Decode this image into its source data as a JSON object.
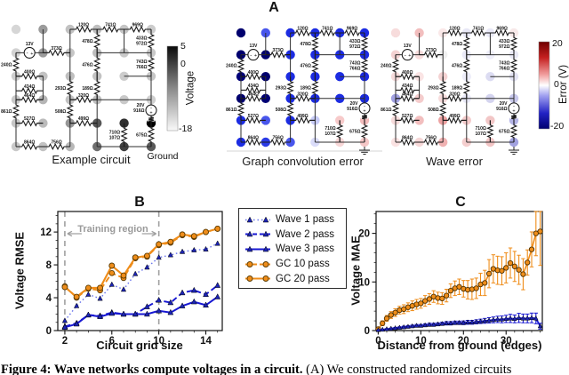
{
  "figure": {
    "panel_a_label": "A",
    "panel_b_label": "B",
    "panel_c_label": "C",
    "caption_bold": "Figure 4: Wave networks compute voltages in a circuit.",
    "caption_rest": " (A) We constructed randomized circuits"
  },
  "colors": {
    "orange": "#ef8d1a",
    "blue": "#1717d2",
    "light_blue": "#6b76ec",
    "marker_navy": "#1c24b4",
    "gray_dashed": "#a0a0a0",
    "wire": "#2e2e2e"
  },
  "circuit": {
    "ground_label": "Ground",
    "source1": {
      "label": "13V"
    },
    "source2": {
      "label": "20V",
      "resistor": "916Ω"
    },
    "resistors": [
      {
        "o": "h",
        "row": 1,
        "a": 3,
        "b": 4,
        "label": "120Ω"
      },
      {
        "o": "h",
        "row": 1,
        "a": 4,
        "b": 5,
        "label": "741Ω"
      },
      {
        "o": "h",
        "row": 1,
        "a": 5,
        "b": 6,
        "label": "969Ω"
      },
      {
        "o": "h",
        "row": 2,
        "a": 2,
        "b": 3,
        "label": "373Ω"
      },
      {
        "o": "v",
        "col": 4,
        "a": 1,
        "b": 2,
        "label": "478Ω"
      },
      {
        "o": "v",
        "col": 6,
        "a": 1,
        "b": 2,
        "label": "433Ω",
        "label2": "972Ω"
      },
      {
        "o": "v",
        "col": 1,
        "a": 2,
        "b": 3,
        "label": "240Ω"
      },
      {
        "o": "h",
        "row": 3,
        "a": 1,
        "b": 2,
        "label": "400Ω"
      },
      {
        "o": "v",
        "col": 4,
        "a": 2,
        "b": 3,
        "label": "476Ω"
      },
      {
        "o": "v",
        "col": 6,
        "a": 2,
        "b": 3,
        "label": "743Ω",
        "label2": "766Ω"
      },
      {
        "o": "h",
        "row": 3.62,
        "a": 1,
        "b": 2,
        "label": "434Ω"
      },
      {
        "o": "h",
        "row": 4,
        "a": 1,
        "b": 2,
        "label": "464Ω"
      },
      {
        "o": "v",
        "col": 3,
        "a": 3,
        "b": 4,
        "label": "293Ω"
      },
      {
        "o": "v",
        "col": 4,
        "a": 3,
        "b": 4,
        "label": "189Ω"
      },
      {
        "o": "h",
        "row": 4,
        "a": 3,
        "b": 4,
        "label": "320Ω"
      },
      {
        "o": "v",
        "col": 1,
        "a": 4,
        "b": 5,
        "label": "861Ω"
      },
      {
        "o": "v",
        "col": 3,
        "a": 4,
        "b": 5,
        "label": "508Ω"
      },
      {
        "o": "h",
        "row": 5,
        "a": 1,
        "b": 2,
        "label": "527Ω"
      },
      {
        "o": "h",
        "row": 5,
        "a": 3,
        "b": 4,
        "label": "499Ω"
      },
      {
        "o": "v",
        "col": 5,
        "a": 5,
        "b": 6,
        "label": "710Ω",
        "label2": "107Ω"
      },
      {
        "o": "v",
        "col": 6,
        "a": 5,
        "b": 6,
        "label": "675Ω"
      },
      {
        "o": "h",
        "row": 6,
        "a": 1,
        "b": 2,
        "label": "864Ω"
      },
      {
        "o": "h",
        "row": 6,
        "a": 2,
        "b": 3,
        "label": "756Ω"
      }
    ],
    "panels": [
      {
        "id": "example",
        "title": "Example circuit",
        "nodes": [
          [
            "#d6d6d6",
            "#9b9b9b",
            "#c2c2c2",
            "#bfbfbf",
            "#c5c5c5",
            "#cccccc"
          ],
          [
            "#d2d2d2",
            "#9b9b9b",
            "#c6c6c6",
            "#bdbdbd",
            "#c9c9c9",
            "#c9c9c9"
          ],
          [
            "#cfcfcf",
            "#c2c2c2",
            "#bfbfbf",
            "#c2c2c2",
            "#cccccc",
            "#c6c6c6"
          ],
          [
            "#c9c9c9",
            "#b5b5b5",
            "#c2c2c2",
            "#bfbfbf",
            "#c9c9c9",
            "#cfcfcf"
          ],
          [
            "#c6c6c6",
            "#bbbbbb",
            "#979797",
            "#575757",
            "#303030",
            "#000000"
          ],
          [
            "#c9c9c9",
            "#c2c2c2",
            "#b8b8b8",
            "#6f6f6f",
            "#414141",
            "#5a5a5a"
          ]
        ]
      },
      {
        "id": "gc",
        "title": "Graph convolution error",
        "nodes": [
          [
            "#00006e",
            "#4856ec",
            "#1c2ce2",
            "#1c2ce2",
            "#1c2ce2",
            "#1c2ce2"
          ],
          [
            "#00006e",
            "#00006e",
            "#1c2ce2",
            "#1c2ce2",
            "#1c2ce2",
            "#1c2ce2"
          ],
          [
            "#000078",
            "#00006e",
            "#1c2ce2",
            "#1c2ce2",
            "#1c2ce2",
            "#1c2ce2"
          ],
          [
            "#00006e",
            "#000074",
            "#1c2ce2",
            "#1c2ce2",
            "#1c2ce2",
            "#1c2ce2"
          ],
          [
            "#1c2ce2",
            "#4856ec",
            "#1c2ce2",
            "#c8ccf8",
            "#f7caca",
            "#f3bcbc"
          ],
          [
            "#1c2ce2",
            "#2a3ae6",
            "#4856ec",
            "#dadcfa",
            "#f7d6d6",
            "#f4c6c6"
          ]
        ]
      },
      {
        "id": "wave",
        "title": "Wave error",
        "nodes": [
          [
            "#f7dcdc",
            "#f2bebe",
            "#fae8e8",
            "#e8e8f6",
            "#eaeaf8",
            "#f7e8e8"
          ],
          [
            "#f4d2d2",
            "#f7dcdc",
            "#f0f0f0",
            "#eaeaf8",
            "#efeffa",
            "#e8e8f5"
          ],
          [
            "#f7dcdc",
            "#fae4e4",
            "#f4d2d2",
            "#ededf9",
            "#dcdcf2",
            "#e4e4f4"
          ],
          [
            "#a2a2e2",
            "#f4cccc",
            "#f7dcdc",
            "#eaeaf8",
            "#d4d4ef",
            "#c8c8ec"
          ],
          [
            "#f7dcdc",
            "#f2bebe",
            "#eda2a2",
            "#f4cccc",
            "#f2c6c6",
            "#b6b6e8"
          ],
          [
            "#fae2e2",
            "#f7d8d8",
            "#f0b2b2",
            "#f4cece",
            "#f2c4c4",
            "#a2a2e0"
          ]
        ]
      }
    ],
    "voltage_bar": {
      "label": "Voltage",
      "tick_top": "5",
      "tick_mid": "0",
      "tick_bottom": "-18"
    },
    "error_bar": {
      "label": "Error (V)",
      "tick_top": "20",
      "tick_mid": "0",
      "tick_bottom": "-20"
    }
  },
  "chart_data": [
    {
      "id": "B",
      "type": "line",
      "xlabel": "Circuit grid size",
      "ylabel": "Voltage RMSE",
      "xlim": [
        1.4,
        15.4
      ],
      "ylim": [
        0,
        14.5
      ],
      "xticks": [
        2,
        6,
        10,
        14
      ],
      "yticks": [
        0,
        4,
        8,
        12
      ],
      "x": [
        2,
        3,
        4,
        5,
        6,
        7,
        8,
        9,
        10,
        11,
        12,
        13,
        14,
        15
      ],
      "series": [
        {
          "name": "Wave 1 pass",
          "style": "dotted",
          "marker": "triangle",
          "values": [
            1.2,
            3.0,
            4.4,
            3.9,
            5.6,
            5.0,
            6.9,
            7.7,
            8.9,
            9.2,
            9.6,
            9.8,
            9.9,
            10.6
          ]
        },
        {
          "name": "Wave 2 pass",
          "style": "dashed",
          "marker": "triangle",
          "values": [
            0.5,
            0.9,
            1.9,
            1.8,
            2.2,
            2.0,
            2.0,
            2.9,
            3.7,
            3.4,
            4.6,
            4.9,
            4.4,
            5.5
          ]
        },
        {
          "name": "Wave 3 pass",
          "style": "solid",
          "marker": "triangle",
          "values": [
            0.4,
            0.8,
            1.9,
            1.7,
            2.1,
            2.0,
            2.0,
            2.0,
            2.4,
            2.2,
            3.0,
            3.5,
            3.1,
            4.1
          ]
        },
        {
          "name": "GC 10 pass",
          "style": "dashed",
          "marker": "circle",
          "values": [
            5.4,
            4.0,
            5.1,
            4.9,
            7.0,
            6.4,
            8.8,
            9.0,
            10.4,
            10.7,
            11.6,
            11.4,
            12.0,
            12.4
          ]
        },
        {
          "name": "GC 20 pass",
          "style": "solid",
          "marker": "circle",
          "values": [
            5.3,
            4.1,
            5.2,
            5.2,
            7.9,
            6.7,
            8.9,
            9.1,
            10.5,
            10.8,
            11.7,
            11.5,
            12.0,
            12.4
          ]
        }
      ],
      "annotations": {
        "training_label": "Training region",
        "training_range": [
          2,
          10
        ]
      }
    },
    {
      "id": "C",
      "type": "errorbar-line",
      "xlabel": "Distance from ground (edges)",
      "ylabel": "Voltage MAE",
      "xlim": [
        -0.5,
        38.5
      ],
      "ylim": [
        0,
        24.5
      ],
      "xticks": [
        0,
        10,
        20,
        30
      ],
      "yticks": [
        0,
        10,
        20
      ],
      "x": [
        0,
        1,
        2,
        3,
        4,
        5,
        6,
        7,
        8,
        9,
        10,
        11,
        12,
        13,
        14,
        15,
        16,
        17,
        18,
        19,
        20,
        21,
        22,
        23,
        24,
        25,
        26,
        27,
        28,
        29,
        30,
        31,
        32,
        33,
        34,
        35,
        36,
        37,
        38
      ],
      "series": [
        {
          "name": "GC",
          "marker": "circle",
          "style": "solid",
          "values": [
            0.3,
            1.5,
            2.5,
            3.2,
            3.7,
            4.2,
            4.4,
            4.8,
            5.1,
            5.4,
            5.6,
            6.1,
            6.5,
            7.0,
            6.7,
            6.6,
            7.2,
            8.2,
            8.7,
            9.0,
            8.6,
            8.4,
            8.5,
            8.7,
            9.5,
            9.8,
            11.7,
            12.7,
            12.4,
            12.3,
            12.9,
            13.9,
            13.2,
            12.5,
            11.6,
            14.0,
            16.7,
            20.0,
            20.4
          ],
          "errors": [
            0.3,
            0.5,
            0.6,
            0.7,
            0.8,
            0.8,
            0.9,
            0.9,
            1.0,
            1.0,
            1.0,
            1.1,
            1.1,
            1.2,
            1.2,
            1.2,
            1.3,
            1.4,
            1.5,
            1.6,
            1.7,
            1.9,
            2.1,
            2.1,
            2.3,
            2.6,
            2.9,
            2.9,
            2.9,
            2.9,
            3.1,
            3.1,
            3.1,
            3.0,
            3.2,
            2.6,
            3.6,
            4.6,
            7.0
          ]
        },
        {
          "name": "Wave",
          "marker": "triangle",
          "style": "solid",
          "values": [
            0.1,
            0.2,
            0.3,
            0.4,
            0.5,
            0.6,
            0.7,
            0.8,
            0.9,
            1.0,
            1.0,
            1.1,
            1.2,
            1.2,
            1.3,
            1.4,
            1.5,
            1.5,
            1.6,
            1.6,
            1.6,
            1.7,
            1.7,
            1.8,
            1.9,
            2.0,
            2.1,
            2.2,
            2.3,
            2.3,
            2.4,
            2.5,
            2.4,
            2.6,
            2.5,
            2.5,
            2.6,
            2.5,
            0.9
          ],
          "errors": [
            0.05,
            0.08,
            0.1,
            0.12,
            0.15,
            0.17,
            0.2,
            0.2,
            0.22,
            0.25,
            0.25,
            0.28,
            0.3,
            0.3,
            0.3,
            0.32,
            0.35,
            0.35,
            0.35,
            0.35,
            0.38,
            0.4,
            0.4,
            0.42,
            0.45,
            0.5,
            0.55,
            0.6,
            0.65,
            0.7,
            0.75,
            0.85,
            0.8,
            0.95,
            0.9,
            0.9,
            1.0,
            1.1,
            0.6
          ]
        }
      ]
    }
  ],
  "legend": {
    "items": [
      {
        "label": "Wave 1 pass",
        "line": "dotted",
        "marker": "triangle"
      },
      {
        "label": "Wave 2 pass",
        "line": "dashed",
        "marker": "triangle"
      },
      {
        "label": "Wave 3 pass",
        "line": "solid",
        "marker": "triangle"
      },
      {
        "label": "GC 10 pass",
        "line": "dashed",
        "marker": "circle"
      },
      {
        "label": "GC 20 pass",
        "line": "solid",
        "marker": "circle"
      }
    ]
  }
}
